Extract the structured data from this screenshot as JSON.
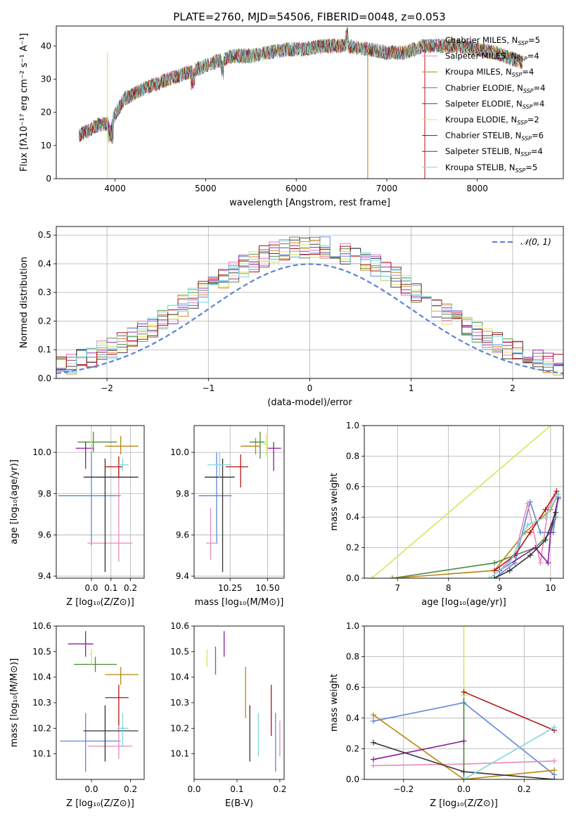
{
  "title": "PLATE=2760, MJD=54506, FIBERID=0048, z=0.053",
  "colors": {
    "Chabrier MILES": "#5f87d8",
    "Salpeter MILES": "#e88bb8",
    "Kroupa MILES": "#b8860b",
    "Chabrier ELODIE": "#4a8a3f",
    "Salpeter ELODIE": "#8b1a9e",
    "Kroupa ELODIE": "#d4e65a",
    "Chabrier STELIB": "#333333",
    "Salpeter STELIB": "#b01515",
    "Kroupa STELIB": "#7fd6dd",
    "hist_blue": "#6b87e0",
    "hist_orange": "#e67e22",
    "hist_pink": "#e373c0",
    "hist_green": "#5a8c4a",
    "hist_purple": "#9a2fb5",
    "hist_yellow": "#d8e855",
    "hist_dark": "#444444",
    "hist_red": "#aa1111",
    "hist_cyan": "#79dde2"
  },
  "chart_data": [
    {
      "id": "spectrum",
      "type": "line",
      "title": "PLATE=2760, MJD=54506, FIBERID=0048, z=0.053",
      "xlabel": "wavelength [Angstrom, rest frame]",
      "ylabel": "Flux [fλ10⁻¹⁷ erg cm⁻² s⁻¹ A⁻¹]",
      "xlim": [
        3350,
        8950
      ],
      "ylim": [
        0,
        46
      ],
      "xticks": [
        "4000",
        "5000",
        "6000",
        "7000",
        "8000"
      ],
      "yticks": [
        "0",
        "10",
        "20",
        "30",
        "40"
      ],
      "legend_position": "right",
      "legend": [
        "Chabrier MILES, N_SSP=5",
        "Salpeter MILES, N_SSP=4",
        "Kroupa MILES, N_SSP=4",
        "Chabrier ELODIE, N_SSP=4",
        "Salpeter ELODIE, N_SSP=4",
        "Kroupa ELODIE, N_SSP=2",
        "Chabrier STELIB, N_SSP=6",
        "Salpeter STELIB, N_SSP=4",
        "Kroupa STELIB, N_SSP=5"
      ],
      "continuum": [
        [
          3600,
          13
        ],
        [
          3800,
          16
        ],
        [
          3950,
          17
        ],
        [
          4100,
          24
        ],
        [
          4300,
          27
        ],
        [
          4500,
          29
        ],
        [
          4700,
          31
        ],
        [
          4900,
          33
        ],
        [
          5100,
          35
        ],
        [
          5300,
          37
        ],
        [
          5500,
          37
        ],
        [
          5700,
          38
        ],
        [
          5900,
          39
        ],
        [
          6100,
          39
        ],
        [
          6300,
          40
        ],
        [
          6550,
          40
        ],
        [
          6800,
          39
        ],
        [
          7000,
          38
        ],
        [
          7200,
          38
        ],
        [
          7400,
          40
        ],
        [
          7800,
          40
        ],
        [
          8200,
          38
        ],
        [
          8500,
          35
        ]
      ],
      "cutoffs": [
        {
          "x": 3915,
          "name": "Kroupa ELODIE"
        },
        {
          "x": 6790,
          "name": "Kroupa MILES"
        },
        {
          "x": 7420,
          "name": "Salpeter STELIB"
        }
      ]
    },
    {
      "id": "residual_hist",
      "type": "bar",
      "xlabel": "(data-model)/error",
      "ylabel": "Normed distribution",
      "xlim": [
        -2.5,
        2.5
      ],
      "ylim": [
        0,
        0.53
      ],
      "xticks": [
        "−2",
        "−1",
        "0",
        "1",
        "2"
      ],
      "yticks": [
        "0.0",
        "0.1",
        "0.2",
        "0.3",
        "0.4",
        "0.5"
      ],
      "legend": [
        "𝒩(0, 1)"
      ],
      "grid": true,
      "bin_width": 0.1,
      "gaussian": {
        "mu": 0,
        "sigma": 1
      }
    },
    {
      "id": "age_vs_Z",
      "type": "scatter",
      "xlabel": "Z [log₁₀(Z/Z⊙)]",
      "ylabel": "age  [log₁₀(age/yr)]",
      "xlim": [
        -0.18,
        0.27
      ],
      "ylim": [
        9.39,
        10.13
      ],
      "xticks": [
        "0.0",
        "0.1",
        "0.2"
      ],
      "yticks": [
        "9.4",
        "9.6",
        "9.8",
        "10.0"
      ],
      "grid": true,
      "points": [
        {
          "name": "Chabrier MILES",
          "x": 0.0,
          "y": 9.79,
          "xl": -0.17,
          "xr": 0.15,
          "yl": 9.55,
          "yr": 10.04
        },
        {
          "name": "Salpeter MILES",
          "x": 0.14,
          "y": 9.56,
          "xl": -0.02,
          "xr": 0.21,
          "yl": 9.47,
          "yr": 9.94
        },
        {
          "name": "Kroupa MILES",
          "x": 0.15,
          "y": 10.03,
          "xl": 0.07,
          "xr": 0.24,
          "yl": 9.99,
          "yr": 10.08
        },
        {
          "name": "Chabrier ELODIE",
          "x": 0.01,
          "y": 10.05,
          "xl": -0.07,
          "xr": 0.13,
          "yl": 10.0,
          "yr": 10.1
        },
        {
          "name": "Salpeter ELODIE",
          "x": -0.03,
          "y": 10.02,
          "xl": -0.08,
          "xr": 0.01,
          "yl": 9.92,
          "yr": 10.05
        },
        {
          "name": "Kroupa ELODIE",
          "x": 0.0,
          "y": 10.04,
          "xl": 0.0,
          "xr": 0.0,
          "yl": 10.0,
          "yr": 10.09
        },
        {
          "name": "Chabrier STELIB",
          "x": 0.07,
          "y": 9.88,
          "xl": -0.04,
          "xr": 0.24,
          "yl": 9.42,
          "yr": 9.97
        },
        {
          "name": "Salpeter STELIB",
          "x": 0.14,
          "y": 9.93,
          "xl": 0.07,
          "xr": 0.16,
          "yl": 9.88,
          "yr": 9.98
        },
        {
          "name": "Kroupa STELIB",
          "x": 0.16,
          "y": 9.94,
          "xl": 0.13,
          "xr": 0.19,
          "yl": 9.91,
          "yr": 9.97
        }
      ]
    },
    {
      "id": "age_vs_mass",
      "type": "scatter",
      "xlabel": "mass [log₁₀(M/M⊙)]",
      "xlim": [
        10.01,
        10.61
      ],
      "ylim": [
        9.39,
        10.13
      ],
      "xticks": [
        "10.25",
        "10.50"
      ],
      "yticks": [
        "9.4",
        "9.6",
        "9.8",
        "10.0"
      ],
      "grid": true,
      "points": [
        {
          "name": "Chabrier MILES",
          "x": 10.16,
          "y": 9.79,
          "xl": 10.04,
          "xr": 10.26,
          "yl": 9.56,
          "yr": 10.0
        },
        {
          "name": "Salpeter MILES",
          "x": 10.12,
          "y": 9.56,
          "xl": 10.09,
          "xr": 10.17,
          "yl": 9.48,
          "yr": 9.73
        },
        {
          "name": "Kroupa MILES",
          "x": 10.42,
          "y": 10.03,
          "xl": 10.32,
          "xr": 10.45,
          "yl": 9.99,
          "yr": 10.07
        },
        {
          "name": "Chabrier ELODIE",
          "x": 10.45,
          "y": 10.05,
          "xl": 10.38,
          "xr": 10.48,
          "yl": 9.97,
          "yr": 10.1
        },
        {
          "name": "Salpeter ELODIE",
          "x": 10.54,
          "y": 10.02,
          "xl": 10.5,
          "xr": 10.59,
          "yl": 9.91,
          "yr": 10.05
        },
        {
          "name": "Kroupa ELODIE",
          "x": 10.49,
          "y": 10.04,
          "xl": 10.47,
          "xr": 10.5,
          "yl": 9.98,
          "yr": 10.09
        },
        {
          "name": "Chabrier STELIB",
          "x": 10.2,
          "y": 9.88,
          "xl": 10.08,
          "xr": 10.28,
          "yl": 9.42,
          "yr": 9.97
        },
        {
          "name": "Salpeter STELIB",
          "x": 10.32,
          "y": 9.93,
          "xl": 10.22,
          "xr": 10.37,
          "yl": 9.83,
          "yr": 9.99
        },
        {
          "name": "Kroupa STELIB",
          "x": 10.18,
          "y": 9.94,
          "xl": 10.1,
          "xr": 10.26,
          "yl": 9.88,
          "yr": 10.0
        }
      ]
    },
    {
      "id": "weight_vs_age",
      "type": "line",
      "xlabel": "age  [log₁₀(age/yr)]",
      "ylabel": "mass weight",
      "xlim": [
        6.35,
        10.25
      ],
      "ylim": [
        0,
        1
      ],
      "xticks": [
        "7",
        "8",
        "9",
        "10"
      ],
      "yticks": [
        "0.0",
        "0.2",
        "0.4",
        "0.6",
        "0.8",
        "1.0"
      ],
      "grid": true,
      "series": [
        {
          "name": "Kroupa ELODIE",
          "x": [
            6.5,
            10.0
          ],
          "y": [
            0.0,
            1.0
          ]
        },
        {
          "name": "Chabrier ELODIE",
          "x": [
            6.9,
            8.9,
            9.7,
            10.0,
            10.1
          ],
          "y": [
            0.0,
            0.1,
            0.2,
            0.3,
            0.4
          ]
        },
        {
          "name": "Kroupa MILES",
          "x": [
            6.9,
            8.9,
            9.5,
            10.0,
            10.15
          ],
          "y": [
            0.0,
            0.05,
            0.3,
            0.45,
            0.55
          ]
        },
        {
          "name": "Chabrier MILES",
          "x": [
            8.9,
            9.3,
            9.6,
            9.8,
            10.05,
            10.15
          ],
          "y": [
            0.0,
            0.1,
            0.5,
            0.3,
            0.3,
            0.52
          ]
        },
        {
          "name": "Salpeter MILES",
          "x": [
            9.0,
            9.3,
            9.55,
            9.8,
            9.95,
            10.1
          ],
          "y": [
            0.05,
            0.15,
            0.49,
            0.1,
            0.45,
            0.55
          ]
        },
        {
          "name": "Salpeter ELODIE",
          "x": [
            9.0,
            9.7,
            9.95,
            10.0,
            10.15
          ],
          "y": [
            0.05,
            0.2,
            0.1,
            0.3,
            0.53
          ]
        },
        {
          "name": "Chabrier STELIB",
          "x": [
            8.9,
            9.2,
            9.6,
            9.9,
            10.1
          ],
          "y": [
            0.0,
            0.05,
            0.15,
            0.25,
            0.43
          ]
        },
        {
          "name": "Salpeter STELIB",
          "x": [
            8.9,
            9.3,
            9.6,
            9.9,
            10.12
          ],
          "y": [
            0.05,
            0.15,
            0.3,
            0.45,
            0.57
          ]
        },
        {
          "name": "Kroupa STELIB",
          "x": [
            8.8,
            9.2,
            9.55,
            9.9,
            10.15
          ],
          "y": [
            0.0,
            0.1,
            0.35,
            0.4,
            0.55
          ]
        }
      ]
    },
    {
      "id": "mass_vs_Z",
      "type": "scatter",
      "xlabel": "Z [log₁₀(Z/Z⊙)]",
      "ylabel": "mass [log₁₀(M/M⊙)]",
      "xlim": [
        -0.18,
        0.27
      ],
      "ylim": [
        10.0,
        10.6
      ],
      "xticks": [
        "0.0",
        "0.2"
      ],
      "yticks": [
        "10.1",
        "10.2",
        "10.3",
        "10.4",
        "10.5",
        "10.6"
      ],
      "points": [
        {
          "name": "Chabrier MILES",
          "x": -0.03,
          "y": 10.15,
          "xl": -0.16,
          "xr": 0.15,
          "yl": 10.03,
          "yr": 10.26
        },
        {
          "name": "Salpeter MILES",
          "x": 0.14,
          "y": 10.13,
          "xl": -0.02,
          "xr": 0.21,
          "yl": 10.08,
          "yr": 10.21
        },
        {
          "name": "Kroupa MILES",
          "x": 0.15,
          "y": 10.41,
          "xl": 0.07,
          "xr": 0.24,
          "yl": 10.37,
          "yr": 10.44
        },
        {
          "name": "Chabrier ELODIE",
          "x": 0.02,
          "y": 10.45,
          "xl": -0.09,
          "xr": 0.13,
          "yl": 10.42,
          "yr": 10.48
        },
        {
          "name": "Salpeter ELODIE",
          "x": -0.03,
          "y": 10.53,
          "xl": -0.12,
          "xr": 0.01,
          "yl": 10.48,
          "yr": 10.58
        },
        {
          "name": "Kroupa ELODIE",
          "x": 0.0,
          "y": 10.49,
          "xl": -0.01,
          "xr": 0.0,
          "yl": 10.45,
          "yr": 10.51
        },
        {
          "name": "Chabrier STELIB",
          "x": 0.07,
          "y": 10.19,
          "xl": -0.04,
          "xr": 0.24,
          "yl": 10.07,
          "yr": 10.29
        },
        {
          "name": "Salpeter STELIB",
          "x": 0.14,
          "y": 10.32,
          "xl": 0.07,
          "xr": 0.19,
          "yl": 10.21,
          "yr": 10.37
        },
        {
          "name": "Kroupa STELIB",
          "x": 0.16,
          "y": 10.2,
          "xl": 0.13,
          "xr": 0.19,
          "yl": 10.13,
          "yr": 10.26
        }
      ]
    },
    {
      "id": "mass_vs_EBV",
      "type": "scatter",
      "xlabel": "E(B-V)",
      "xlim": [
        0.0,
        0.21
      ],
      "ylim": [
        10.0,
        10.6
      ],
      "xticks": [
        "0.0",
        "0.1",
        "0.2"
      ],
      "yticks": [
        "10.1",
        "10.2",
        "10.3",
        "10.4",
        "10.5",
        "10.6"
      ],
      "points": [
        {
          "name": "Kroupa ELODIE",
          "x": 0.03,
          "y": 10.48,
          "yl": 10.44,
          "yr": 10.51
        },
        {
          "name": "Chabrier ELODIE",
          "x": 0.05,
          "y": 10.46,
          "yl": 10.41,
          "yr": 10.52
        },
        {
          "name": "Salpeter ELODIE",
          "x": 0.07,
          "y": 10.53,
          "yl": 10.48,
          "yr": 10.58
        },
        {
          "name": "Kroupa MILES",
          "x": 0.12,
          "y": 10.37,
          "yl": 10.24,
          "yr": 10.44
        },
        {
          "name": "Chabrier STELIB",
          "x": 0.13,
          "y": 10.17,
          "yl": 10.07,
          "yr": 10.29
        },
        {
          "name": "Kroupa STELIB",
          "x": 0.15,
          "y": 10.19,
          "yl": 10.09,
          "yr": 10.26
        },
        {
          "name": "Salpeter STELIB",
          "x": 0.18,
          "y": 10.29,
          "yl": 10.17,
          "yr": 10.37
        },
        {
          "name": "Chabrier MILES",
          "x": 0.19,
          "y": 10.15,
          "yl": 10.03,
          "yr": 10.26
        },
        {
          "name": "Salpeter MILES",
          "x": 0.2,
          "y": 10.16,
          "yl": 10.09,
          "yr": 10.23
        }
      ]
    },
    {
      "id": "weight_vs_Z",
      "type": "line",
      "xlabel": "Z [log₁₀(Z/Z⊙)]",
      "ylabel": "mass weight",
      "xlim": [
        -0.33,
        0.33
      ],
      "ylim": [
        0,
        1
      ],
      "xticks": [
        "−0.2",
        "0.0",
        "0.2"
      ],
      "yticks": [
        "0.0",
        "0.2",
        "0.4",
        "0.6",
        "0.8",
        "1.0"
      ],
      "grid": true,
      "series": [
        {
          "name": "Chabrier MILES",
          "x": [
            -0.3,
            0.0,
            0.3
          ],
          "y": [
            0.38,
            0.5,
            0.03
          ]
        },
        {
          "name": "Salpeter MILES",
          "x": [
            -0.3,
            0.0,
            0.3
          ],
          "y": [
            0.09,
            0.1,
            0.12
          ]
        },
        {
          "name": "Kroupa MILES",
          "x": [
            -0.3,
            0.0,
            0.3
          ],
          "y": [
            0.42,
            0.0,
            0.06
          ]
        },
        {
          "name": "Chabrier ELODIE",
          "x": [
            0.0,
            0.0
          ],
          "y": [
            0.0,
            0.55
          ]
        },
        {
          "name": "Salpeter ELODIE",
          "x": [
            -0.3,
            0.0
          ],
          "y": [
            0.13,
            0.25
          ]
        },
        {
          "name": "Kroupa ELODIE",
          "x": [
            0.0,
            0.0
          ],
          "y": [
            0.55,
            1.0
          ]
        },
        {
          "name": "Chabrier STELIB",
          "x": [
            -0.3,
            0.0,
            0.3
          ],
          "y": [
            0.24,
            0.05,
            0.0
          ]
        },
        {
          "name": "Salpeter STELIB",
          "x": [
            0.0,
            0.3
          ],
          "y": [
            0.57,
            0.32
          ]
        },
        {
          "name": "Kroupa STELIB",
          "x": [
            0.0,
            0.3
          ],
          "y": [
            0.0,
            0.34
          ]
        }
      ]
    }
  ]
}
